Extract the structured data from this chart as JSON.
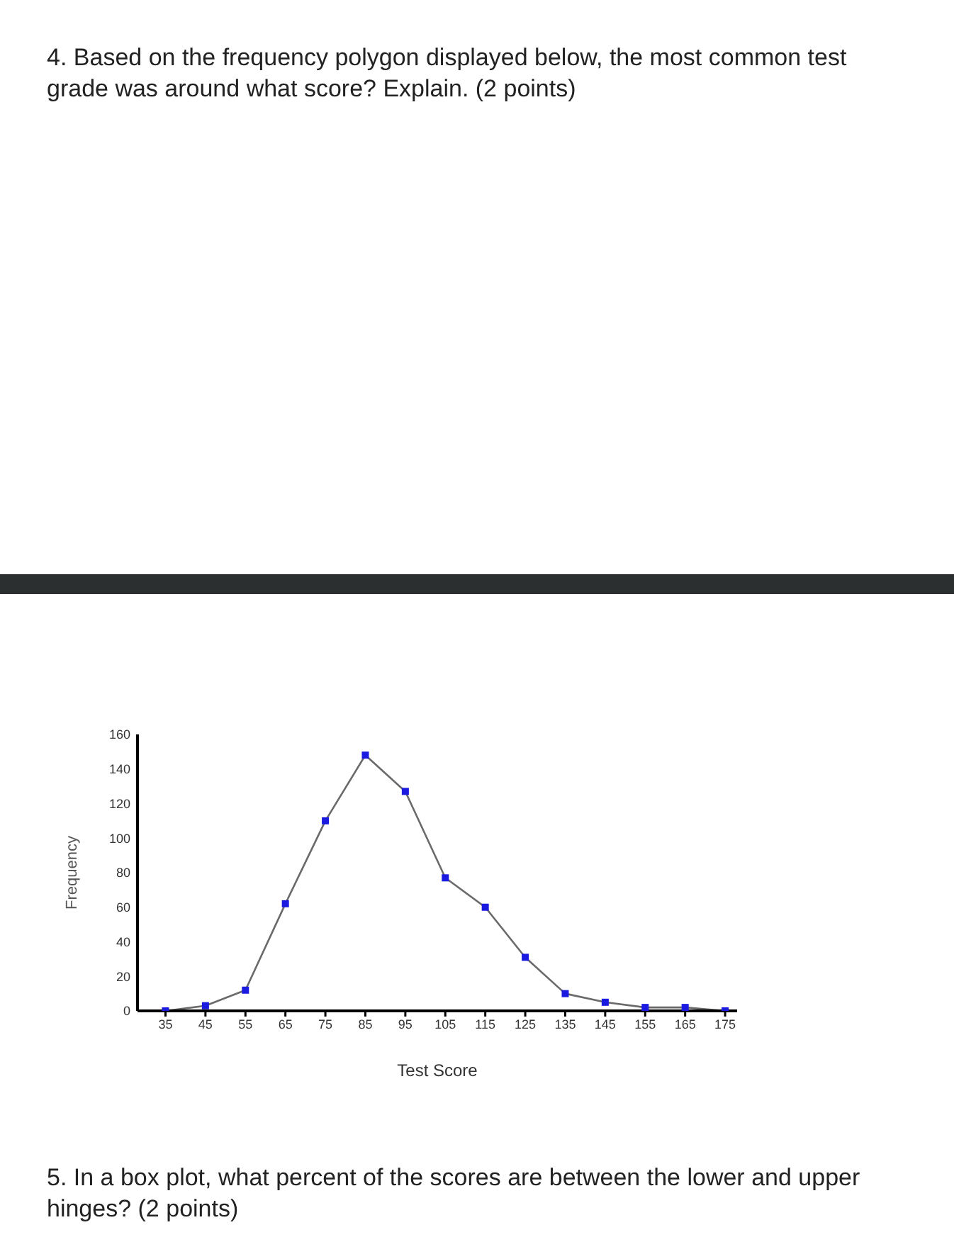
{
  "chart_data": {
    "type": "line",
    "title": "4. Based on the frequency polygon displayed below, the most common test grade was around what score? Explain. (2 points)",
    "xlabel": "Test Score",
    "ylabel": "Frequency",
    "x": [
      35,
      45,
      55,
      65,
      75,
      85,
      95,
      105,
      115,
      125,
      135,
      145,
      155,
      165,
      175
    ],
    "series": [
      {
        "color": "#1a1ae0",
        "values": [
          0,
          3,
          12,
          62,
          110,
          148,
          127,
          77,
          60,
          31,
          10,
          5,
          2,
          2,
          0
        ]
      }
    ],
    "xlim": [
      28,
      178
    ],
    "xticks": [
      35,
      45,
      55,
      65,
      75,
      85,
      95,
      105,
      115,
      125,
      135,
      145,
      155,
      165,
      175
    ],
    "ylim": [
      0,
      160
    ],
    "yticks": [
      0,
      20,
      40,
      60,
      80,
      100,
      120,
      140,
      160
    ],
    "grid": false,
    "legend": false,
    "marker": "square",
    "line_style": "solid",
    "annotations": [
      "5. In a box plot, what percent of the scores are between the lower and upper hinges? (2 points)"
    ]
  }
}
